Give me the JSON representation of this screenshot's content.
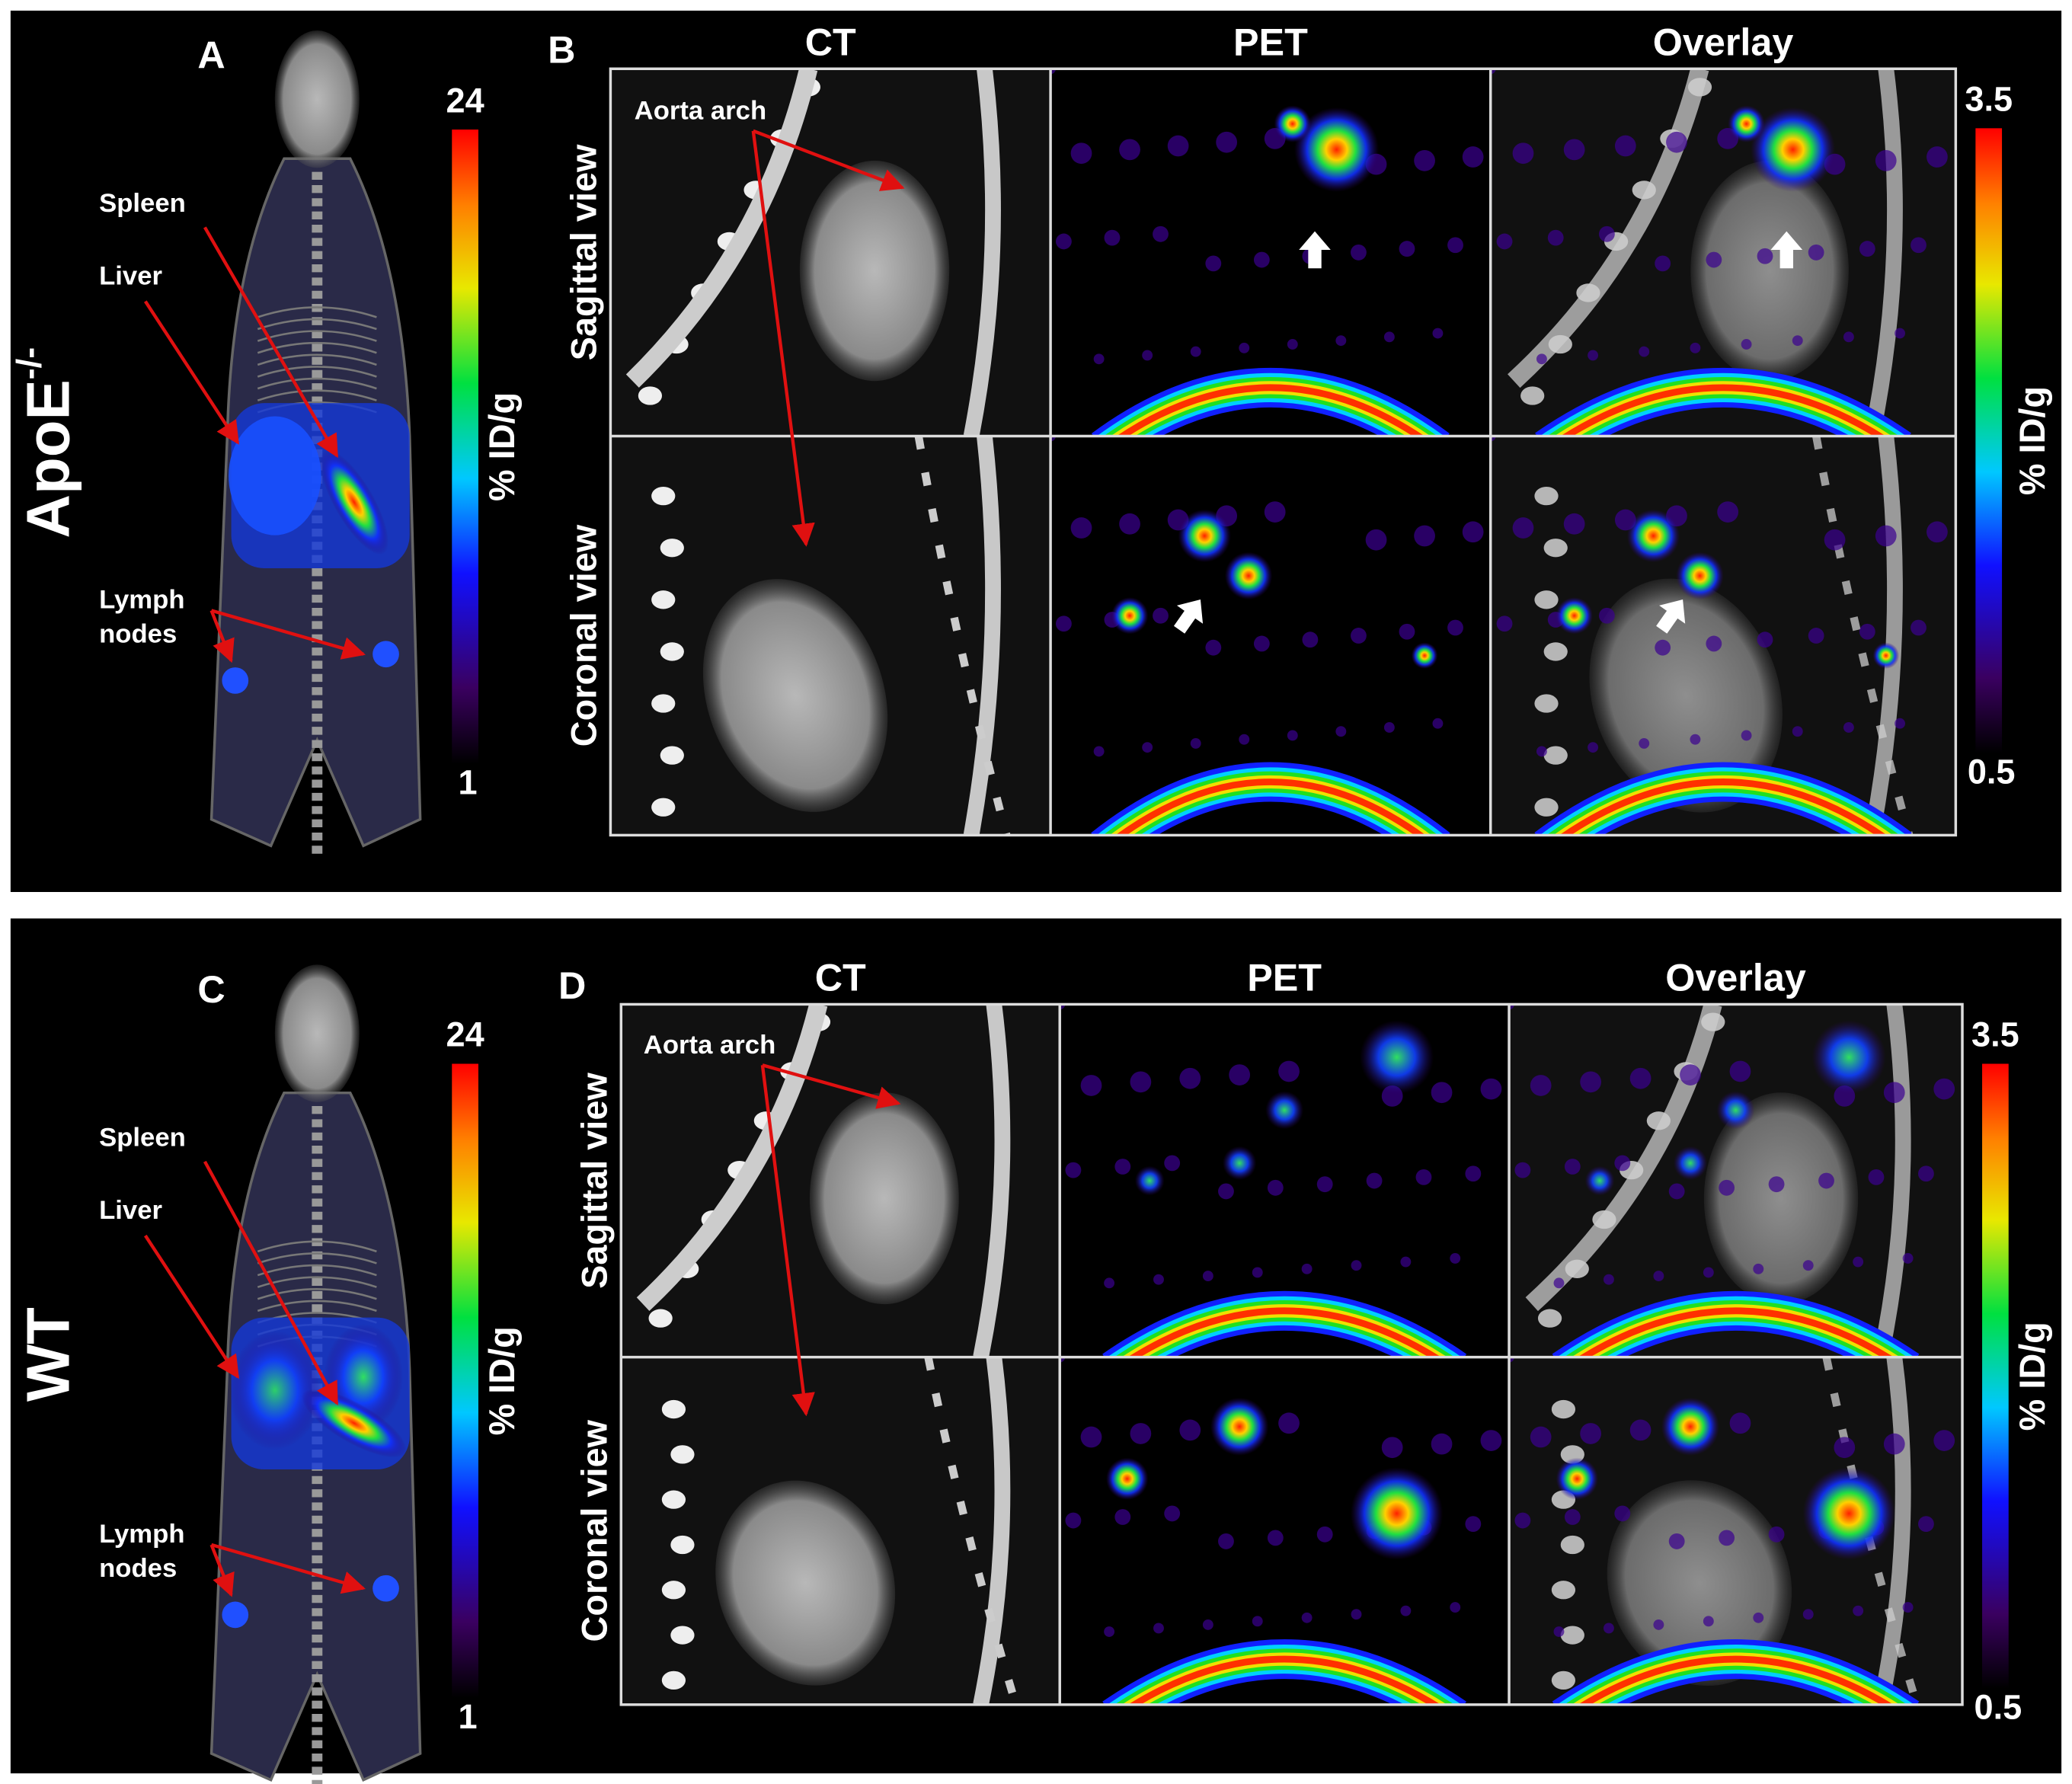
{
  "top": {
    "group_label": "ApoE",
    "group_superscript": "-/-",
    "whole_body": {
      "panel": "A",
      "labels": {
        "spleen": "Spleen",
        "liver": "Liver",
        "lymph_nodes": [
          "Lymph",
          "nodes"
        ]
      },
      "colorbar": {
        "max": 24,
        "min": 1,
        "unit": "% ID/g"
      }
    },
    "slices": {
      "panel": "B",
      "columns": [
        "CT",
        "PET",
        "Overlay"
      ],
      "rows": [
        "Sagittal view",
        "Coronal view"
      ],
      "annotation": "Aorta arch",
      "colorbar": {
        "max": 3.5,
        "min": 0.5,
        "unit": "% ID/g"
      }
    }
  },
  "bottom": {
    "group_label": "WT",
    "whole_body": {
      "panel": "C",
      "labels": {
        "spleen": "Spleen",
        "liver": "Liver",
        "lymph_nodes": [
          "Lymph",
          "nodes"
        ]
      },
      "colorbar": {
        "max": 24,
        "min": 1,
        "unit": "% ID/g"
      }
    },
    "slices": {
      "panel": "D",
      "columns": [
        "CT",
        "PET",
        "Overlay"
      ],
      "rows": [
        "Sagittal view",
        "Coronal view"
      ],
      "annotation": "Aorta arch",
      "colorbar": {
        "max": 3.5,
        "min": 0.5,
        "unit": "% ID/g"
      }
    }
  }
}
